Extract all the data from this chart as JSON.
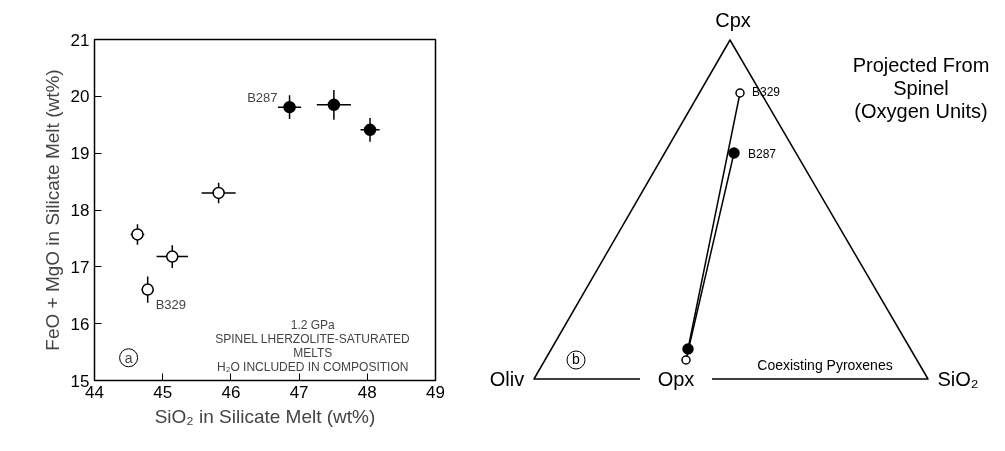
{
  "chart_data": [
    {
      "type": "scatter",
      "xlabel": "SiO₂ in Silicate Melt (wt%)",
      "ylabel": "FeO + MgO in Silicate Melt (wt%)",
      "xlim": [
        44,
        49
      ],
      "ylim": [
        15,
        21
      ],
      "xticks": [
        44,
        45,
        46,
        47,
        48,
        49
      ],
      "yticks": [
        15,
        16,
        17,
        18,
        19,
        20,
        21
      ],
      "grid": false,
      "marker": "circle",
      "series": [
        {
          "color": "#ffffff",
          "x": [
            44.63,
            44.78,
            45.14,
            45.82
          ],
          "values": [
            17.57,
            16.6,
            17.18,
            18.3
          ],
          "xerrors": [
            0.1,
            0.09,
            0.23,
            0.25
          ],
          "errors": [
            0.18,
            0.23,
            0.2,
            0.18
          ]
        },
        {
          "color": "#000000",
          "x": [
            46.86,
            47.51,
            48.04
          ],
          "values": [
            19.81,
            19.85,
            19.41
          ],
          "xerrors": [
            0.17,
            0.25,
            0.14
          ],
          "errors": [
            0.21,
            0.26,
            0.21
          ]
        }
      ],
      "annotations": [
        {
          "text": "B287",
          "x": 46.86,
          "y": 19.81
        },
        {
          "text": "B329",
          "x": 44.78,
          "y": 16.6
        },
        "1.2 GPa\nSPINEL LHERZOLITE-SATURATED\nMELTS\nH₂O INCLUDED IN COMPOSITION",
        "a"
      ]
    },
    {
      "type": "other",
      "title": "Projected From\nSpinel\n(Oxygen Units)",
      "annotations": [
        "Cpx",
        "Oliv",
        "Opx",
        "SiO₂",
        "B329",
        "B287",
        "Coexisting Pyroxenes",
        "b"
      ]
    }
  ]
}
